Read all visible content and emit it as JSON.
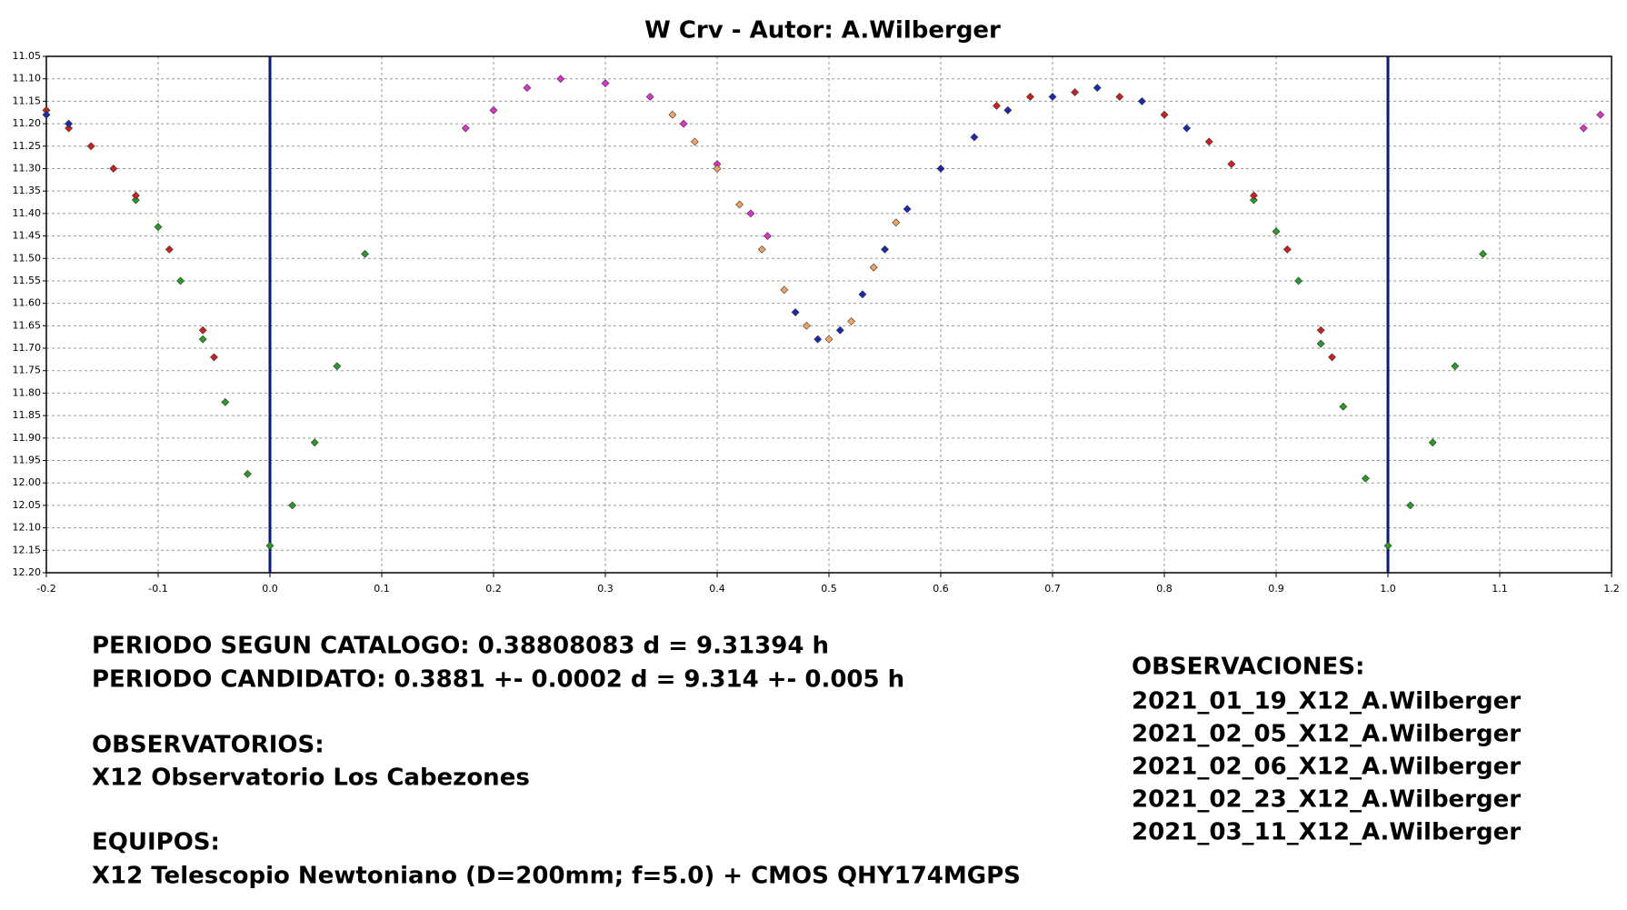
{
  "chart_data": {
    "type": "scatter",
    "title": "W Crv - Autor: A.Wilberger",
    "xlim": [
      -0.2,
      1.2
    ],
    "xticks": [
      -0.2,
      -0.1,
      {
        "value": 0,
        "label": "0.0"
      },
      0.1,
      0.2,
      0.3,
      0.4,
      0.5,
      0.6,
      0.7,
      0.8,
      0.9,
      {
        "value": 1,
        "label": "1.0"
      },
      1.1,
      1.2
    ],
    "ylim": [
      12.2,
      11.05
    ],
    "yticks": [
      11.05,
      {
        "value": 11.1,
        "label": "11.10"
      },
      11.15,
      {
        "value": 11.2,
        "label": "11.20"
      },
      11.25,
      {
        "value": 11.3,
        "label": "11.30"
      },
      11.35,
      {
        "value": 11.4,
        "label": "11.40"
      },
      11.45,
      {
        "value": 11.5,
        "label": "11.50"
      },
      11.55,
      {
        "value": 11.6,
        "label": "11.60"
      },
      11.65,
      {
        "value": 11.7,
        "label": "11.70"
      },
      11.75,
      {
        "value": 11.8,
        "label": "11.80"
      },
      11.85,
      {
        "value": 11.9,
        "label": "11.90"
      },
      11.95,
      {
        "value": 12,
        "label": "12.00"
      },
      12.05,
      {
        "value": 12.1,
        "label": "12.10"
      },
      12.15,
      {
        "value": 12.2,
        "label": "12.20"
      }
    ],
    "grid": true,
    "vlines": [
      0,
      1
    ],
    "vline_color": "#0a1a7a",
    "series": [
      {
        "color": "#2a9a2a",
        "x": [
          -0.12,
          -0.1,
          -0.08,
          -0.06,
          -0.04,
          -0.02,
          0,
          0.02,
          0.04,
          0.06,
          0.085,
          0.88,
          0.9,
          0.92,
          0.94,
          0.96,
          0.98,
          1,
          1.02,
          1.04,
          1.06,
          1.085
        ],
        "values": [
          11.37,
          11.43,
          11.55,
          11.68,
          11.82,
          11.98,
          12.14,
          12.05,
          11.91,
          11.74,
          11.49,
          11.37,
          11.44,
          11.55,
          11.69,
          11.83,
          11.99,
          12.14,
          12.05,
          11.91,
          11.74,
          11.49
        ]
      },
      {
        "color": "#cc2020",
        "x": [
          -0.2,
          -0.18,
          -0.16,
          -0.14,
          -0.12,
          -0.09,
          -0.06,
          -0.05,
          0.65,
          0.68,
          0.72,
          0.76,
          0.8,
          0.84,
          0.86,
          0.88,
          0.91,
          0.94,
          0.95
        ],
        "values": [
          11.17,
          11.21,
          11.25,
          11.3,
          11.36,
          11.48,
          11.66,
          11.72,
          11.16,
          11.14,
          11.13,
          11.14,
          11.18,
          11.24,
          11.29,
          11.36,
          11.48,
          11.66,
          11.72
        ]
      },
      {
        "color": "#dd33cc",
        "x": [
          0.175,
          0.2,
          0.23,
          0.26,
          0.3,
          0.34,
          0.37,
          0.4,
          0.43,
          0.445,
          1.175,
          1.19
        ],
        "values": [
          11.21,
          11.17,
          11.12,
          11.1,
          11.11,
          11.14,
          11.2,
          11.29,
          11.4,
          11.45,
          11.21,
          11.18
        ]
      },
      {
        "color": "#f4a460",
        "x": [
          0.36,
          0.38,
          0.4,
          0.42,
          0.44,
          0.46,
          0.48,
          0.5,
          0.52,
          0.54,
          0.56
        ],
        "values": [
          11.18,
          11.24,
          11.3,
          11.38,
          11.48,
          11.57,
          11.65,
          11.68,
          11.64,
          11.52,
          11.42
        ]
      },
      {
        "color": "#1a2ab0",
        "x": [
          -0.2,
          -0.18,
          0.47,
          0.49,
          0.51,
          0.53,
          0.55,
          0.57,
          0.6,
          0.63,
          0.66,
          0.7,
          0.74,
          0.78,
          0.82
        ],
        "values": [
          11.18,
          11.2,
          11.62,
          11.68,
          11.66,
          11.58,
          11.48,
          11.39,
          11.3,
          11.23,
          11.17,
          11.14,
          11.12,
          11.15,
          11.21
        ]
      }
    ]
  },
  "text_left": [
    "PERIODO SEGUN CATALOGO: 0.38808083 d = 9.31394 h",
    "PERIODO CANDIDATO: 0.3881 +- 0.0002 d = 9.314 +- 0.005 h",
    "OBSERVATORIOS:",
    "X12 Observatorio Los Cabezones",
    "EQUIPOS:",
    "X12 Telescopio Newtoniano (D=200mm; f=5.0) + CMOS QHY174MGPS"
  ],
  "text_right": [
    "OBSERVACIONES:",
    "2021_01_19_X12_A.Wilberger",
    "2021_02_05_X12_A.Wilberger",
    "2021_02_06_X12_A.Wilberger",
    "2021_02_23_X12_A.Wilberger",
    "2021_03_11_X12_A.Wilberger"
  ]
}
